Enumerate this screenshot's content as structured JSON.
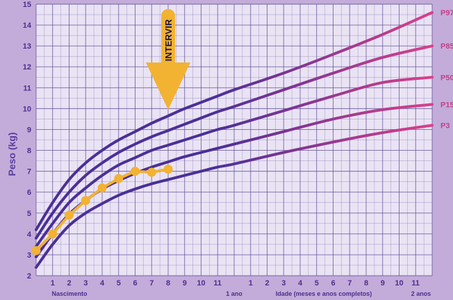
{
  "chart_data": {
    "type": "line",
    "ylabel": "Peso (kg)",
    "xlabel": "Idade (meses e anos completos)",
    "ylim": [
      2,
      15
    ],
    "xlim": [
      0,
      24
    ],
    "y_ticks": [
      "2",
      "3",
      "4",
      "5",
      "6",
      "7",
      "8",
      "9",
      "10",
      "11",
      "12",
      "13",
      "14",
      "15"
    ],
    "x_ticks_year1": [
      "1",
      "2",
      "3",
      "4",
      "5",
      "6",
      "7",
      "8",
      "9",
      "10",
      "11"
    ],
    "x_ticks_year2": [
      "1",
      "2",
      "3",
      "4",
      "5",
      "6",
      "7",
      "8",
      "9",
      "10",
      "11"
    ],
    "x_labels": {
      "birth": "Nascimento",
      "year1": "1 ano",
      "year2": "2 anos"
    },
    "grid": true,
    "series": [
      {
        "name": "P97",
        "x": [
          0,
          1,
          2,
          3,
          4,
          5,
          6,
          7,
          8,
          9,
          10,
          11,
          12,
          15,
          18,
          21,
          24
        ],
        "y": [
          4.2,
          5.5,
          6.6,
          7.4,
          8.0,
          8.5,
          8.9,
          9.3,
          9.65,
          10.0,
          10.3,
          10.6,
          10.9,
          11.7,
          12.6,
          13.55,
          14.6
        ]
      },
      {
        "name": "P85",
        "x": [
          0,
          1,
          2,
          3,
          4,
          5,
          6,
          7,
          8,
          9,
          10,
          11,
          12,
          15,
          18,
          21,
          24
        ],
        "y": [
          3.8,
          5.0,
          6.0,
          6.8,
          7.4,
          7.9,
          8.3,
          8.65,
          8.95,
          9.25,
          9.55,
          9.85,
          10.1,
          10.9,
          11.7,
          12.45,
          13.0
        ]
      },
      {
        "name": "P50",
        "x": [
          0,
          1,
          2,
          3,
          4,
          5,
          6,
          7,
          8,
          9,
          10,
          11,
          12,
          15,
          18,
          21,
          24
        ],
        "y": [
          3.4,
          4.5,
          5.5,
          6.2,
          6.8,
          7.3,
          7.65,
          8.0,
          8.25,
          8.5,
          8.75,
          9.0,
          9.2,
          9.9,
          10.6,
          11.25,
          11.5
        ]
      },
      {
        "name": "P15",
        "x": [
          0,
          1,
          2,
          3,
          4,
          5,
          6,
          7,
          8,
          9,
          10,
          11,
          12,
          15,
          18,
          21,
          24
        ],
        "y": [
          2.9,
          4.0,
          4.95,
          5.6,
          6.15,
          6.55,
          6.9,
          7.2,
          7.45,
          7.7,
          7.9,
          8.1,
          8.3,
          8.9,
          9.5,
          9.95,
          10.2
        ]
      },
      {
        "name": "P3",
        "x": [
          0,
          1,
          2,
          3,
          4,
          5,
          6,
          7,
          8,
          9,
          10,
          11,
          12,
          15,
          18,
          21,
          24
        ],
        "y": [
          2.4,
          3.5,
          4.4,
          5.0,
          5.45,
          5.85,
          6.15,
          6.4,
          6.6,
          6.8,
          7.0,
          7.2,
          7.35,
          7.9,
          8.4,
          8.85,
          9.2
        ]
      }
    ],
    "child_measurements": {
      "x": [
        0,
        1,
        2,
        3,
        4,
        5,
        6,
        7,
        8
      ],
      "y": [
        3.2,
        4.0,
        4.9,
        5.6,
        6.2,
        6.65,
        7.0,
        6.95,
        7.1
      ]
    },
    "annotation": {
      "text": "INTERVIR",
      "x": 8
    },
    "colors": {
      "background": "#c3acd9",
      "plot": "#e9e3f4",
      "grid": "#52408f",
      "curve_start": "#4b2f97",
      "curve_end": "#d9408a",
      "child": "#f2b232"
    }
  }
}
